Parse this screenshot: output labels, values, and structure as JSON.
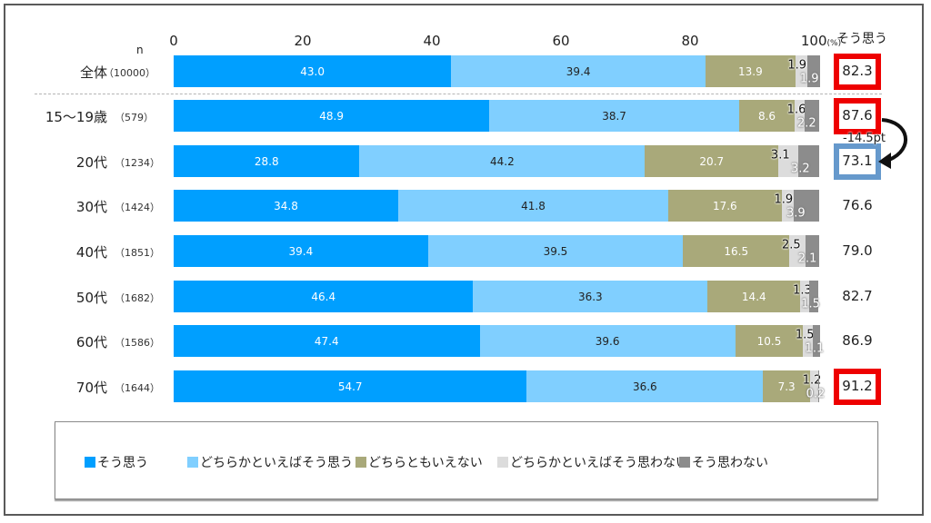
{
  "chart_data": {
    "type": "bar",
    "orientation": "horizontal-stacked-100",
    "xlim": [
      0,
      100
    ],
    "x_ticks": [
      "0",
      "20",
      "40",
      "60",
      "80",
      "100"
    ],
    "x_unit": "(%)",
    "n_header": "n",
    "score_header": "そう思う",
    "categories": [
      "全体",
      "15～19歳",
      "20代",
      "30代",
      "40代",
      "50代",
      "60代",
      "70代"
    ],
    "n_labels": [
      "（10000）",
      "（579）",
      "（1234）",
      "（1424）",
      "（1851）",
      "（1682）",
      "（1586）",
      "（1644）"
    ],
    "series": [
      {
        "name": "そう思う",
        "color": "#009fff",
        "label_color": "#ffffff",
        "values": [
          43.0,
          48.9,
          28.8,
          34.8,
          39.4,
          46.4,
          47.4,
          54.7
        ],
        "labels": [
          "43.0",
          "48.9",
          "28.8",
          "34.8",
          "39.4",
          "46.4",
          "47.4",
          "54.7"
        ]
      },
      {
        "name": "どちらかといえばそう思う",
        "color": "#80cfff",
        "label_color": "#222222",
        "values": [
          39.4,
          38.7,
          44.2,
          41.8,
          39.5,
          36.3,
          39.6,
          36.6
        ],
        "labels": [
          "39.4",
          "38.7",
          "44.2",
          "41.8",
          "39.5",
          "36.3",
          "39.6",
          "36.6"
        ]
      },
      {
        "name": "どちらともいえない",
        "color": "#a9a97a",
        "label_color": "#ffffff",
        "values": [
          13.9,
          8.6,
          20.7,
          17.6,
          16.5,
          14.4,
          10.5,
          7.3
        ],
        "labels": [
          "13.9",
          "8.6",
          "20.7",
          "17.6",
          "16.5",
          "14.4",
          "10.5",
          "7.3"
        ]
      },
      {
        "name": "どちらかといえばそう思わない",
        "color": "#dcdcdc",
        "label_color": "#111111",
        "values": [
          1.9,
          1.6,
          3.1,
          1.9,
          2.5,
          1.3,
          1.5,
          1.2
        ],
        "labels": [
          "1.9",
          "1.6",
          "3.1",
          "1.9",
          "2.5",
          "1.3",
          "1.5",
          "1.2"
        ]
      },
      {
        "name": "そう思わない",
        "color": "#8c8c8c",
        "label_color": "#ffffff",
        "values": [
          1.9,
          2.2,
          3.2,
          3.9,
          2.1,
          1.5,
          1.1,
          0.2
        ],
        "labels": [
          "1.9",
          "2.2",
          "3.2",
          "3.9",
          "2.1",
          "1.5",
          "1.1",
          "0.2"
        ]
      }
    ],
    "scores": [
      "82.3",
      "87.6",
      "73.1",
      "76.6",
      "79.0",
      "82.7",
      "86.9",
      "91.2"
    ],
    "score_highlight": [
      "red",
      "red",
      "blue",
      "none",
      "none",
      "none",
      "none",
      "red"
    ],
    "highlight_colors": {
      "red": "#ee0000",
      "blue": "#6699cc"
    },
    "annotation": "-14.5pt",
    "legend_position": "bottom",
    "grid": false
  }
}
